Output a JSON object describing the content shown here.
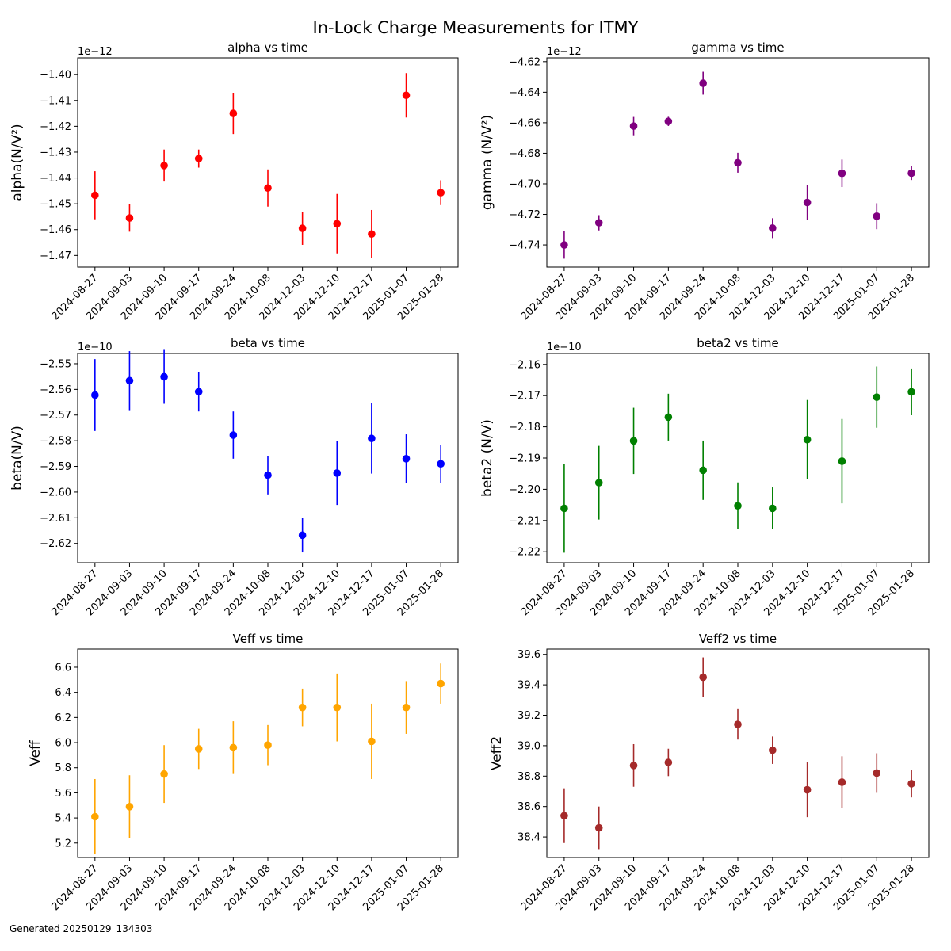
{
  "figure": {
    "title": "In-Lock Charge Measurements for ITMY",
    "footer": "Generated 20250129_134303"
  },
  "chart_data": [
    {
      "type": "scatter",
      "title": "alpha vs time",
      "xlabel": "",
      "ylabel": "alpha(N/V²)",
      "offset_label": "1e−12",
      "color": "#ff0000",
      "categories": [
        "2024-08-27",
        "2024-09-03",
        "2024-09-10",
        "2024-09-17",
        "2024-09-24",
        "2024-10-08",
        "2024-12-03",
        "2024-12-10",
        "2024-12-17",
        "2025-01-07",
        "2025-01-28"
      ],
      "values": [
        -1.4467,
        -1.4555,
        -1.4352,
        -1.4325,
        -1.415,
        -1.4439,
        -1.4595,
        -1.4577,
        -1.4617,
        -1.408,
        -1.4457
      ],
      "errors": [
        0.0093,
        0.0053,
        0.0062,
        0.0035,
        0.008,
        0.0072,
        0.0064,
        0.0115,
        0.0093,
        0.0086,
        0.0048
      ],
      "ylim": [
        -1.4745,
        -1.3935
      ],
      "yticks": [
        -1.47,
        -1.46,
        -1.45,
        -1.44,
        -1.43,
        -1.42,
        -1.41,
        -1.4
      ],
      "ytick_labels": [
        "−1.47",
        "−1.46",
        "−1.45",
        "−1.44",
        "−1.43",
        "−1.42",
        "−1.41",
        "−1.40"
      ]
    },
    {
      "type": "scatter",
      "title": "gamma vs time",
      "xlabel": "",
      "ylabel": "gamma (N/V²)",
      "offset_label": "1e−12",
      "color": "#800080",
      "categories": [
        "2024-08-27",
        "2024-09-03",
        "2024-09-10",
        "2024-09-17",
        "2024-09-24",
        "2024-10-08",
        "2024-12-03",
        "2024-12-10",
        "2024-12-17",
        "2025-01-07",
        "2025-01-28"
      ],
      "values": [
        -4.74,
        -4.7255,
        -4.6622,
        -4.6591,
        -4.6341,
        -4.6862,
        -4.729,
        -4.7122,
        -4.6931,
        -4.7212,
        -4.693
      ],
      "errors": [
        0.009,
        0.005,
        0.006,
        0.003,
        0.0075,
        0.0065,
        0.0065,
        0.0115,
        0.009,
        0.0085,
        0.0045
      ],
      "ylim": [
        -4.7545,
        -4.6175
      ],
      "yticks": [
        -4.74,
        -4.72,
        -4.7,
        -4.68,
        -4.66,
        -4.64,
        -4.62
      ],
      "ytick_labels": [
        "−4.74",
        "−4.72",
        "−4.70",
        "−4.68",
        "−4.66",
        "−4.64",
        "−4.62"
      ]
    },
    {
      "type": "scatter",
      "title": "beta vs time",
      "xlabel": "",
      "ylabel": "beta(N/V)",
      "offset_label": "1e−10",
      "color": "#0000ff",
      "categories": [
        "2024-08-27",
        "2024-09-03",
        "2024-09-10",
        "2024-09-17",
        "2024-09-24",
        "2024-10-08",
        "2024-12-03",
        "2024-12-10",
        "2024-12-17",
        "2025-01-07",
        "2025-01-28"
      ],
      "values": [
        -2.5622,
        -2.5566,
        -2.5551,
        -2.5609,
        -2.5778,
        -2.5934,
        -2.6168,
        -2.5926,
        -2.5791,
        -2.587,
        -2.589
      ],
      "errors": [
        0.014,
        0.0115,
        0.0105,
        0.0077,
        0.0092,
        0.0075,
        0.0067,
        0.0124,
        0.0137,
        0.0095,
        0.0075
      ],
      "ylim": [
        -2.6275,
        -2.546
      ],
      "yticks": [
        -2.62,
        -2.61,
        -2.6,
        -2.59,
        -2.58,
        -2.57,
        -2.56,
        -2.55
      ],
      "ytick_labels": [
        "−2.62",
        "−2.61",
        "−2.60",
        "−2.59",
        "−2.58",
        "−2.57",
        "−2.56",
        "−2.55"
      ]
    },
    {
      "type": "scatter",
      "title": "beta2 vs time",
      "xlabel": "",
      "ylabel": "beta2 (N/V)",
      "offset_label": "1e−10",
      "color": "#008000",
      "categories": [
        "2024-08-27",
        "2024-09-03",
        "2024-09-10",
        "2024-09-17",
        "2024-09-24",
        "2024-10-08",
        "2024-12-03",
        "2024-12-10",
        "2024-12-17",
        "2025-01-07",
        "2025-01-28"
      ],
      "values": [
        -2.2061,
        -2.1979,
        -2.1845,
        -2.1769,
        -2.1939,
        -2.2053,
        -2.2061,
        -2.1841,
        -2.191,
        -2.1705,
        -2.1688
      ],
      "errors": [
        0.0142,
        0.0118,
        0.0106,
        0.0075,
        0.0095,
        0.0075,
        0.0067,
        0.0127,
        0.0135,
        0.0098,
        0.0075
      ],
      "ylim": [
        -2.2235,
        -2.1565
      ],
      "yticks": [
        -2.22,
        -2.21,
        -2.2,
        -2.19,
        -2.18,
        -2.17,
        -2.16
      ],
      "ytick_labels": [
        "−2.22",
        "−2.21",
        "−2.20",
        "−2.19",
        "−2.18",
        "−2.17",
        "−2.16"
      ]
    },
    {
      "type": "scatter",
      "title": "Veff vs time",
      "xlabel": "",
      "ylabel": "Veff",
      "offset_label": "",
      "color": "#ffa500",
      "categories": [
        "2024-08-27",
        "2024-09-03",
        "2024-09-10",
        "2024-09-17",
        "2024-09-24",
        "2024-10-08",
        "2024-12-03",
        "2024-12-10",
        "2024-12-17",
        "2025-01-07",
        "2025-01-28"
      ],
      "values": [
        5.41,
        5.49,
        5.75,
        5.95,
        5.96,
        5.98,
        6.28,
        6.28,
        6.01,
        6.28,
        6.47
      ],
      "errors": [
        0.3,
        0.25,
        0.23,
        0.16,
        0.21,
        0.16,
        0.15,
        0.27,
        0.3,
        0.21,
        0.16
      ],
      "ylim": [
        5.085,
        6.745
      ],
      "yticks": [
        5.2,
        5.4,
        5.6,
        5.8,
        6.0,
        6.2,
        6.4,
        6.6
      ],
      "ytick_labels": [
        "5.2",
        "5.4",
        "5.6",
        "5.8",
        "6.0",
        "6.2",
        "6.4",
        "6.6"
      ]
    },
    {
      "type": "scatter",
      "title": "Veff2 vs time",
      "xlabel": "",
      "ylabel": "Veff2",
      "offset_label": "",
      "color": "#a52a2a",
      "categories": [
        "2024-08-27",
        "2024-09-03",
        "2024-09-10",
        "2024-09-17",
        "2024-09-24",
        "2024-10-08",
        "2024-12-03",
        "2024-12-10",
        "2024-12-17",
        "2025-01-07",
        "2025-01-28"
      ],
      "values": [
        38.54,
        38.46,
        38.87,
        38.89,
        39.45,
        39.14,
        38.97,
        38.71,
        38.76,
        38.82,
        38.75
      ],
      "errors": [
        0.18,
        0.14,
        0.14,
        0.09,
        0.13,
        0.1,
        0.09,
        0.18,
        0.17,
        0.13,
        0.09
      ],
      "ylim": [
        38.265,
        39.635
      ],
      "yticks": [
        38.4,
        38.6,
        38.8,
        39.0,
        39.2,
        39.4,
        39.6
      ],
      "ytick_labels": [
        "38.4",
        "38.6",
        "38.8",
        "39.0",
        "39.2",
        "39.4",
        "39.6"
      ]
    }
  ]
}
